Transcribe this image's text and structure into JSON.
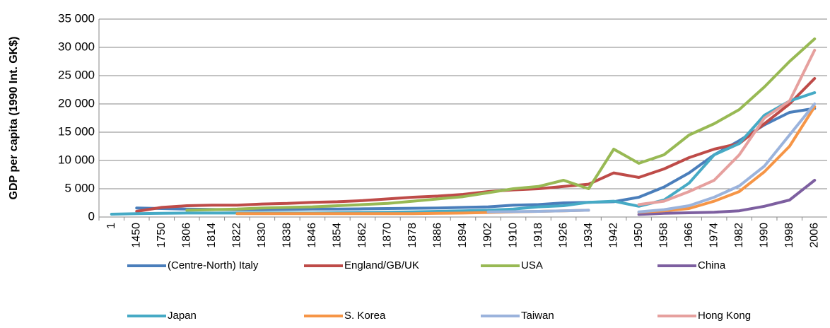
{
  "chart_data": {
    "type": "line",
    "y_label": "GDP per capita (1990 Int. GK$)",
    "categories": [
      "1",
      "1450",
      "1750",
      "1806",
      "1814",
      "1822",
      "1830",
      "1838",
      "1846",
      "1854",
      "1862",
      "1870",
      "1878",
      "1886",
      "1894",
      "1902",
      "1910",
      "1918",
      "1926",
      "1934",
      "1942",
      "1950",
      "1958",
      "1966",
      "1974",
      "1982",
      "1990",
      "1998",
      "2006"
    ],
    "ylim": [
      0,
      35000
    ],
    "yticks": [
      0,
      {
        "value": 5000,
        "label": "5 000"
      },
      {
        "value": 10000,
        "label": "10 000"
      },
      {
        "value": 15000,
        "label": "15 000"
      },
      {
        "value": 20000,
        "label": "20 000"
      },
      {
        "value": 25000,
        "label": "25 000"
      },
      {
        "value": 30000,
        "label": "30 000"
      },
      {
        "value": 35000,
        "label": "35 000"
      }
    ],
    "grid": true,
    "series": [
      {
        "name": "(Centre-North) Italy",
        "color": "#4a7ebb",
        "values": [
          null,
          1600,
          1500,
          1400,
          1350,
          1300,
          1300,
          1350,
          1400,
          1400,
          1450,
          1500,
          1550,
          1600,
          1700,
          1800,
          2100,
          2200,
          2500,
          2600,
          2700,
          3500,
          5300,
          7800,
          11000,
          13500,
          16300,
          18500,
          19200
        ]
      },
      {
        "name": "England/GB/UK",
        "color": "#be4b48",
        "values": [
          null,
          1000,
          1700,
          2000,
          2100,
          2100,
          2300,
          2400,
          2600,
          2700,
          2900,
          3200,
          3500,
          3700,
          4000,
          4500,
          4800,
          5000,
          5400,
          5800,
          7800,
          7000,
          8500,
          10500,
          12000,
          13000,
          16500,
          20000,
          24500
        ]
      },
      {
        "name": "USA",
        "color": "#98b954",
        "values": [
          null,
          null,
          null,
          1200,
          1300,
          1400,
          1600,
          1700,
          1800,
          2000,
          2200,
          2400,
          2800,
          3200,
          3600,
          4300,
          5000,
          5400,
          6500,
          5000,
          12000,
          9500,
          11000,
          14500,
          16500,
          19000,
          23000,
          27500,
          31500
        ]
      },
      {
        "name": "China",
        "color": "#7d5fa0",
        "values": [
          null,
          null,
          null,
          null,
          null,
          null,
          null,
          null,
          null,
          null,
          null,
          null,
          null,
          null,
          null,
          null,
          null,
          null,
          null,
          null,
          null,
          450,
          650,
          750,
          850,
          1100,
          1900,
          3000,
          6500
        ]
      },
      {
        "name": "Japan",
        "color": "#46aac5",
        "values": [
          500,
          600,
          650,
          700,
          700,
          700,
          700,
          700,
          700,
          750,
          800,
          850,
          900,
          1000,
          1100,
          1200,
          1400,
          1800,
          2000,
          2600,
          2800,
          1900,
          3000,
          6000,
          11000,
          13000,
          18000,
          20500,
          22000
        ]
      },
      {
        "name": "S. Korea",
        "color": "#f69546",
        "values": [
          null,
          null,
          null,
          null,
          null,
          600,
          600,
          600,
          600,
          600,
          600,
          600,
          600,
          650,
          700,
          800,
          900,
          1000,
          1100,
          1200,
          null,
          850,
          1100,
          1500,
          2800,
          4500,
          8000,
          12500,
          19500
        ]
      },
      {
        "name": "Taiwan",
        "color": "#9bb3dc",
        "values": [
          null,
          null,
          null,
          null,
          null,
          null,
          null,
          null,
          null,
          null,
          null,
          null,
          null,
          null,
          null,
          900,
          950,
          1000,
          1100,
          1200,
          null,
          900,
          1300,
          2000,
          3500,
          5500,
          9000,
          14500,
          20000
        ]
      },
      {
        "name": "Hong Kong",
        "color": "#e6a09e",
        "values": [
          null,
          null,
          null,
          null,
          null,
          null,
          null,
          null,
          null,
          null,
          null,
          null,
          null,
          null,
          null,
          null,
          null,
          null,
          null,
          null,
          null,
          2200,
          2800,
          4500,
          6500,
          11000,
          17500,
          20500,
          29500
        ]
      }
    ]
  }
}
